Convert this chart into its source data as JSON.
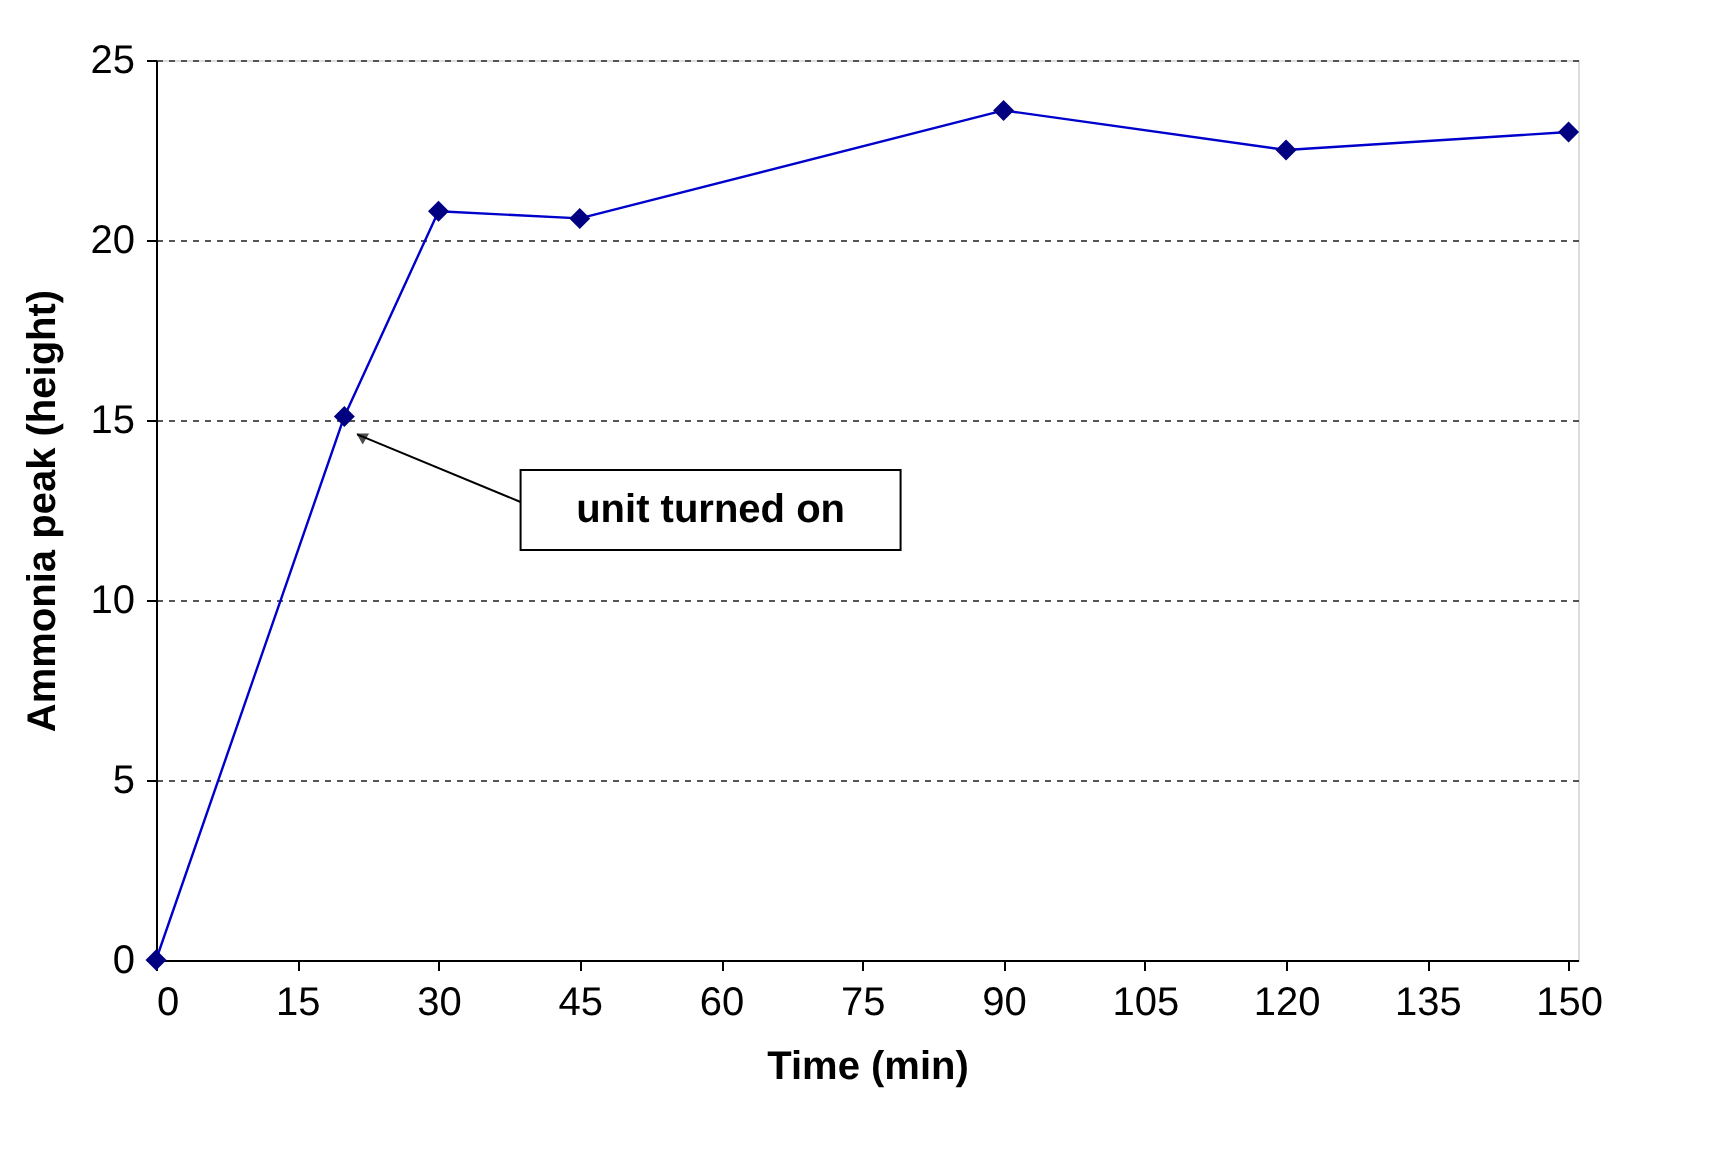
{
  "chart_data": {
    "type": "line",
    "xlabel": "Time (min)",
    "ylabel": "Ammonia peak (height)",
    "x": [
      0,
      20,
      30,
      45,
      90,
      120,
      150
    ],
    "series": [
      {
        "color": "#000080",
        "values": [
          0,
          15.1,
          20.8,
          20.6,
          23.6,
          22.5,
          23.0
        ]
      }
    ],
    "xlim": [
      0,
      151
    ],
    "xticks": [
      0,
      15,
      30,
      45,
      60,
      75,
      90,
      105,
      120,
      135,
      150
    ],
    "ylim": [
      0,
      25
    ],
    "yticks": [
      0,
      5,
      10,
      15,
      20,
      25
    ],
    "grid": "y",
    "marker": "diamond",
    "line_style": "solid",
    "annotations": [
      "unit turned on"
    ]
  }
}
